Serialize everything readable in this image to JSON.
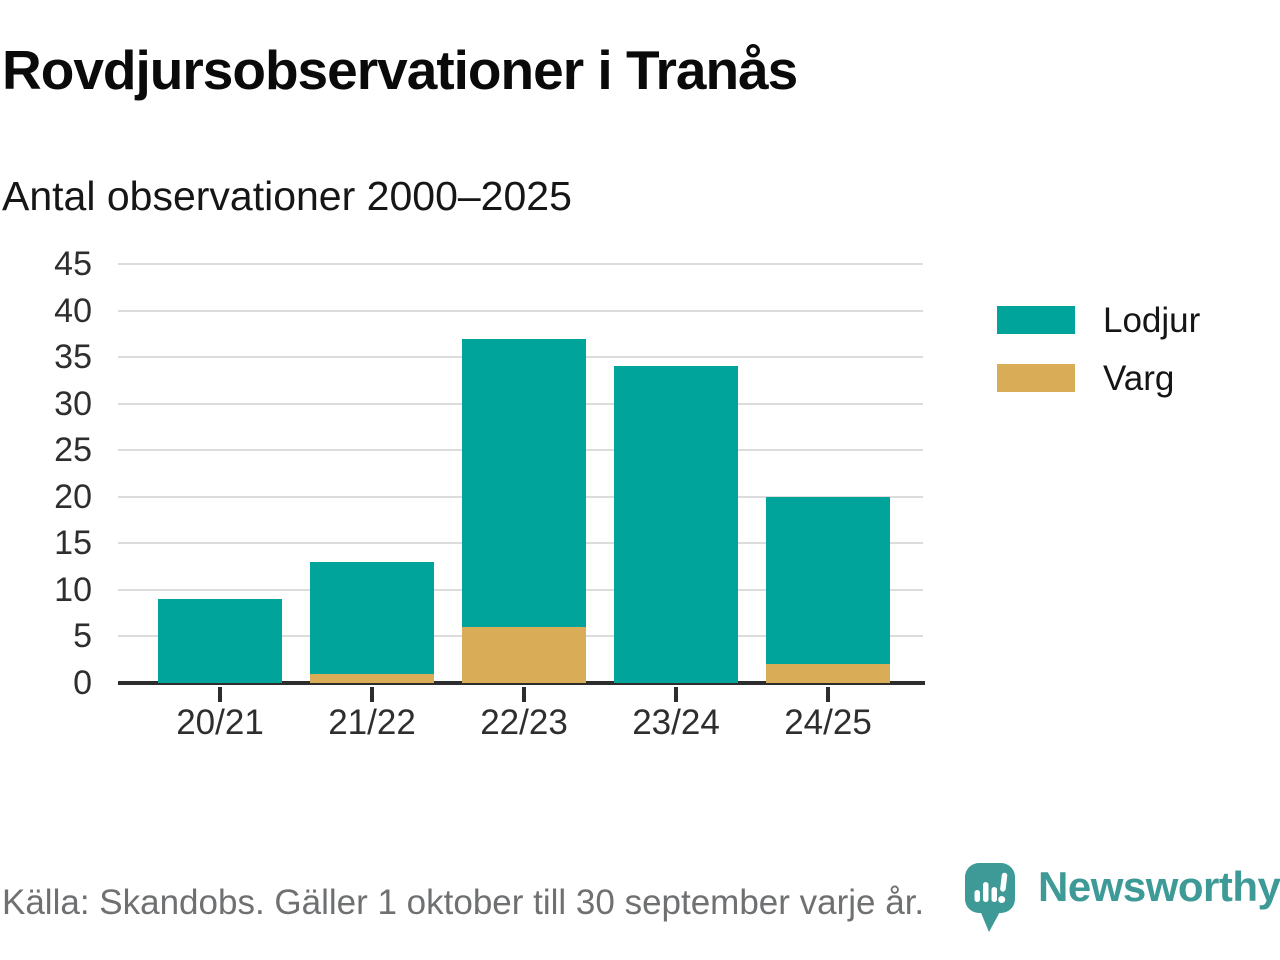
{
  "chart_data": {
    "type": "bar",
    "stacked": true,
    "title": "Rovdjursobservationer i Tranås",
    "subtitle": "Antal observationer 2000–2025",
    "categories": [
      "20/21",
      "21/22",
      "22/23",
      "23/24",
      "24/25"
    ],
    "series": [
      {
        "name": "Lodjur",
        "color": "#00a49b",
        "values": [
          9,
          12,
          31,
          34,
          18
        ]
      },
      {
        "name": "Varg",
        "color": "#d9ac57",
        "values": [
          0,
          1,
          6,
          0,
          2
        ]
      }
    ],
    "stack_totals": [
      9,
      13,
      37,
      34,
      20
    ],
    "xlabel": "",
    "ylabel": "",
    "ylim": [
      0,
      45
    ],
    "yticks": [
      0,
      5,
      10,
      15,
      20,
      25,
      30,
      35,
      40,
      45
    ],
    "grid": true,
    "legend_position": "right"
  },
  "footer": {
    "source": "Källa: Skandobs. Gäller 1 oktober till 30 september varje år.",
    "brand": "Newsworthy"
  },
  "colors": {
    "lodjur": "#00a49b",
    "varg": "#d9ac57",
    "brand_teal": "#3d9a96",
    "grid": "#dcdcdc",
    "axis": "#2d2d2d"
  }
}
